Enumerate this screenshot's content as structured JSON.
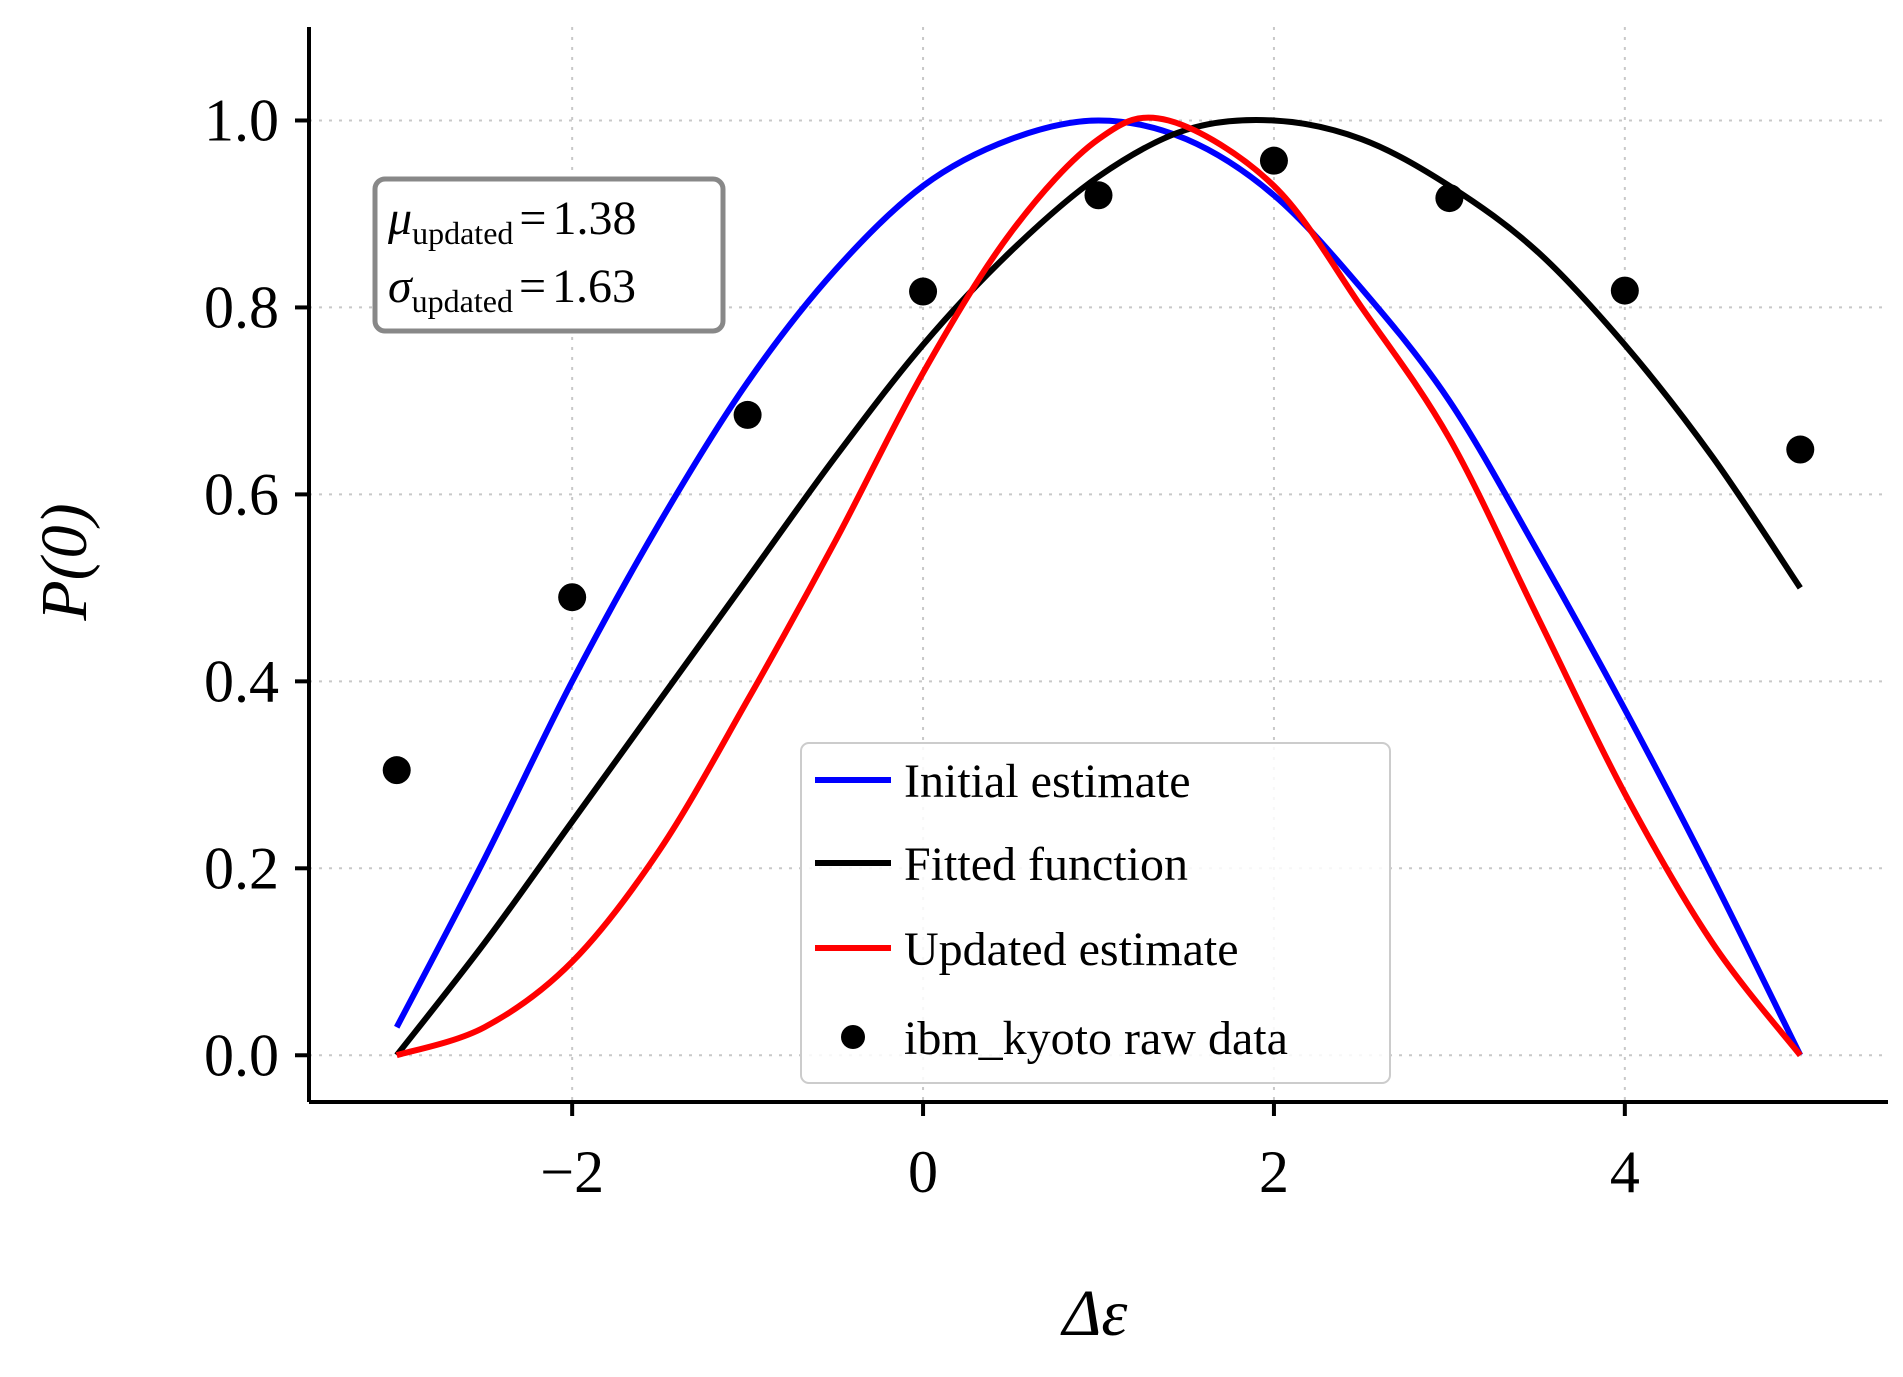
{
  "chart_data": {
    "type": "line",
    "xlabel": "Δε",
    "ylabel": "P(0)",
    "xlim": [
      -3.5,
      5.5
    ],
    "ylim": [
      -0.05,
      1.1
    ],
    "xticks": [
      -2,
      0,
      2,
      4
    ],
    "xtick_labels": [
      "−2",
      "0",
      "2",
      "4"
    ],
    "yticks": [
      0.0,
      0.2,
      0.4,
      0.6,
      0.8,
      1.0
    ],
    "ytick_labels": [
      "0.0",
      "0.2",
      "0.4",
      "0.6",
      "0.8",
      "1.0"
    ],
    "grid": true,
    "legend_position": "lower-center",
    "series": [
      {
        "name": "Initial estimate",
        "kind": "line",
        "color": "#0000ff",
        "x": [
          -3.0,
          -2.5,
          -2.0,
          -1.5,
          -1.0,
          -0.5,
          0.0,
          0.5,
          1.0,
          1.5,
          2.0,
          2.5,
          3.0,
          3.5,
          4.0,
          4.5,
          5.0
        ],
        "y": [
          0.03,
          0.21,
          0.4,
          0.57,
          0.72,
          0.84,
          0.93,
          0.98,
          1.0,
          0.98,
          0.92,
          0.82,
          0.7,
          0.54,
          0.37,
          0.19,
          0.0
        ]
      },
      {
        "name": "Fitted function",
        "kind": "line",
        "color": "#000000",
        "x": [
          -3.0,
          -2.5,
          -2.0,
          -1.5,
          -1.0,
          -0.5,
          0.0,
          0.5,
          1.0,
          1.5,
          2.0,
          2.5,
          3.0,
          3.5,
          4.0,
          4.5,
          5.0
        ],
        "y": [
          0.0,
          0.12,
          0.25,
          0.38,
          0.51,
          0.64,
          0.76,
          0.86,
          0.94,
          0.99,
          1.0,
          0.98,
          0.93,
          0.86,
          0.76,
          0.64,
          0.5
        ]
      },
      {
        "name": "Updated estimate",
        "kind": "line",
        "color": "#ff0000",
        "x": [
          -3.0,
          -2.5,
          -2.0,
          -1.5,
          -1.0,
          -0.5,
          0.0,
          0.5,
          1.0,
          1.4,
          2.0,
          2.5,
          3.0,
          3.5,
          4.0,
          4.5,
          5.0
        ],
        "y": [
          0.0,
          0.03,
          0.1,
          0.22,
          0.38,
          0.55,
          0.73,
          0.88,
          0.98,
          1.0,
          0.93,
          0.8,
          0.66,
          0.47,
          0.28,
          0.12,
          0.0
        ]
      },
      {
        "name": "ibm_kyoto raw data",
        "kind": "scatter",
        "color": "#000000",
        "x": [
          -3,
          -2,
          -1,
          0,
          1,
          2,
          3,
          4,
          5
        ],
        "y": [
          0.305,
          0.49,
          0.685,
          0.817,
          0.92,
          0.957,
          0.917,
          0.818,
          0.648
        ]
      }
    ],
    "annotation": {
      "mu_symbol": "μ",
      "sigma_symbol": "σ",
      "subscript": "updated",
      "equals": "=",
      "mu_value": "1.38",
      "sigma_value": "1.63"
    }
  }
}
